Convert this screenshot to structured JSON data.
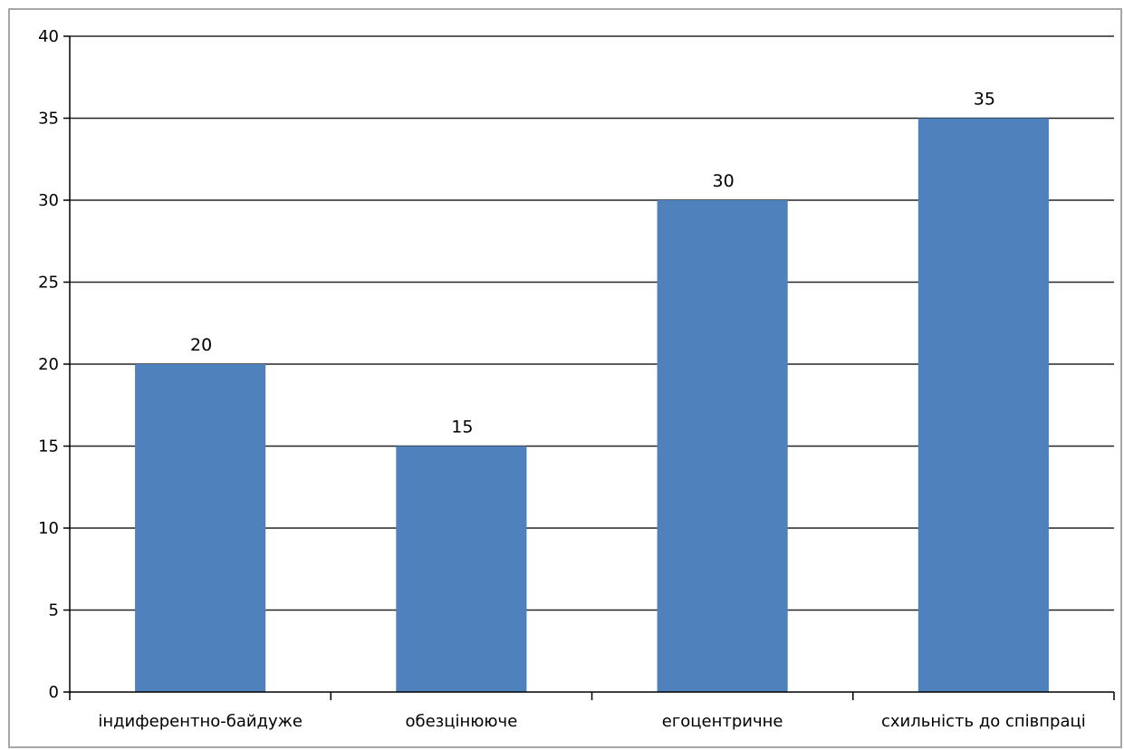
{
  "chart_data": {
    "type": "bar",
    "categories": [
      "індиферентно-байдуже",
      "обезцінююче",
      "егоцентричне",
      "схильність до співпраці"
    ],
    "values": [
      20,
      15,
      30,
      35
    ],
    "data_labels": [
      "20",
      "15",
      "30",
      "35"
    ],
    "title": "",
    "xlabel": "",
    "ylabel": "",
    "ylim": [
      0,
      40
    ],
    "yticks": [
      0,
      5,
      10,
      15,
      20,
      25,
      30,
      35,
      40
    ],
    "ytick_labels": [
      "0",
      "5",
      "10",
      "15",
      "20",
      "25",
      "30",
      "35",
      "40"
    ],
    "grid": true,
    "legend": "none",
    "bar_color": "#4f81bd",
    "gridline_color": "#000000",
    "frame_color": "#a6a6a6"
  }
}
